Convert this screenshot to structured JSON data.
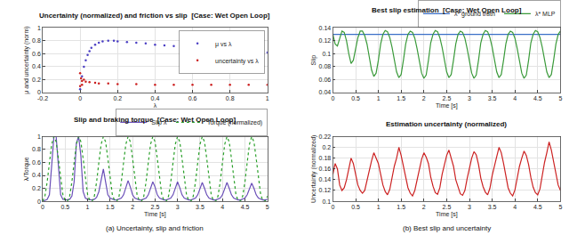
{
  "chart_data": [
    {
      "type": "scatter",
      "title": "Uncertainty (normalized) and friction vs slip  [Case: Wet Open Loop]",
      "x_label": "λ",
      "y_label": "μ and uncertainty (norm)",
      "xlim": [
        -0.2,
        1
      ],
      "xticks": [
        -0.2,
        0,
        0.2,
        0.4,
        0.6,
        0.8,
        1
      ],
      "ylim": [
        0,
        1
      ],
      "yticks": [
        0,
        0.2,
        0.4,
        0.6,
        0.8,
        1
      ],
      "grid": true,
      "legend": "upper right",
      "series": [
        {
          "name": "μ vs λ",
          "color": "#4b3fc4",
          "marker": "dot",
          "x": [
            0,
            0.01,
            0.02,
            0.03,
            0.04,
            0.05,
            0.06,
            0.08,
            0.1,
            0.12,
            0.15,
            0.18,
            0.2,
            0.25,
            0.3,
            0.35,
            0.4,
            0.45,
            0.5,
            0.55,
            0.6,
            0.65,
            0.7,
            0.75,
            0.8,
            0.85,
            0.9,
            0.95,
            1
          ],
          "values": [
            0.05,
            0.25,
            0.4,
            0.5,
            0.58,
            0.64,
            0.69,
            0.74,
            0.77,
            0.79,
            0.8,
            0.8,
            0.79,
            0.78,
            0.77,
            0.76,
            0.74,
            0.73,
            0.72,
            0.71,
            0.7,
            0.69,
            0.68,
            0.67,
            0.66,
            0.65,
            0.64,
            0.63,
            0.62
          ]
        },
        {
          "name": "uncertainty vs λ",
          "color": "#cc2020",
          "marker": "dot",
          "x": [
            0,
            0,
            0.005,
            0.01,
            0.01,
            0.02,
            0.03,
            0.05,
            0.08,
            0.1,
            0.15,
            0.2,
            0.3,
            0.4,
            0.5,
            0.6,
            0.7,
            0.8,
            0.9,
            1
          ],
          "values": [
            0.3,
            0.1,
            0.22,
            0.18,
            0.12,
            0.2,
            0.17,
            0.16,
            0.15,
            0.14,
            0.14,
            0.13,
            0.13,
            0.12,
            0.12,
            0.12,
            0.12,
            0.12,
            0.12,
            0.12
          ]
        }
      ]
    },
    {
      "type": "line",
      "title": "Slip and braking torque  [Case: Wet Open Loop]",
      "x_label": "Time [s]",
      "y_label": "λ/Torque",
      "xlim": [
        0,
        5
      ],
      "xticks": [
        0,
        0.5,
        1,
        1.5,
        2,
        2.5,
        3,
        3.5,
        4,
        4.5,
        5
      ],
      "ylim": [
        0,
        1
      ],
      "yticks": [
        0,
        0.2,
        0.4,
        0.6,
        0.8,
        1
      ],
      "grid": true,
      "legend": "above",
      "x": [
        0,
        0.05,
        0.1,
        0.15,
        0.2,
        0.25,
        0.3,
        0.35,
        0.4,
        0.45,
        0.5,
        0.55,
        0.6,
        0.65,
        0.7,
        0.75,
        0.8,
        0.85,
        0.9,
        0.95,
        1,
        1.05,
        1.1,
        1.15,
        1.2,
        1.25,
        1.3,
        1.35,
        1.4,
        1.45,
        1.5,
        1.55,
        1.6,
        1.65,
        1.7,
        1.75,
        1.8,
        1.85,
        1.9,
        1.95,
        2,
        2.05,
        2.1,
        2.15,
        2.2,
        2.25,
        2.3,
        2.35,
        2.4,
        2.45,
        2.5,
        2.55,
        2.6,
        2.65,
        2.7,
        2.75,
        2.8,
        2.85,
        2.9,
        2.95,
        3,
        3.05,
        3.1,
        3.15,
        3.2,
        3.25,
        3.3,
        3.35,
        3.4,
        3.45,
        3.5,
        3.55,
        3.6,
        3.65,
        3.7,
        3.75,
        3.8,
        3.85,
        3.9,
        3.95,
        4,
        4.05,
        4.1,
        4.15,
        4.2,
        4.25,
        4.3,
        4.35,
        4.4,
        4.45,
        4.5,
        4.55,
        4.6,
        4.65,
        4.7,
        4.75,
        4.8,
        4.85,
        4.9,
        4.95,
        5
      ],
      "series": [
        {
          "name": "Slip λ",
          "color": "#6a4fb8",
          "line_style": "solid",
          "values": [
            0,
            0.01,
            0.03,
            0.1,
            0.5,
            1,
            1,
            0.6,
            0.1,
            0.03,
            0.02,
            0.02,
            0.03,
            0.08,
            0.3,
            0.9,
            1,
            0.7,
            0.15,
            0.05,
            0.03,
            0.02,
            0.02,
            0.03,
            0.06,
            0.15,
            0.35,
            0.5,
            0.3,
            0.1,
            0.05,
            0.03,
            0.02,
            0.02,
            0.03,
            0.05,
            0.1,
            0.22,
            0.32,
            0.22,
            0.1,
            0.05,
            0.03,
            0.02,
            0.02,
            0.03,
            0.05,
            0.1,
            0.2,
            0.3,
            0.22,
            0.1,
            0.05,
            0.03,
            0.02,
            0.02,
            0.03,
            0.05,
            0.1,
            0.2,
            0.3,
            0.21,
            0.1,
            0.05,
            0.03,
            0.02,
            0.02,
            0.03,
            0.05,
            0.1,
            0.2,
            0.29,
            0.2,
            0.1,
            0.05,
            0.03,
            0.02,
            0.02,
            0.03,
            0.05,
            0.1,
            0.2,
            0.29,
            0.2,
            0.1,
            0.05,
            0.03,
            0.02,
            0.02,
            0.03,
            0.05,
            0.1,
            0.2,
            0.28,
            0.2,
            0.1,
            0.05,
            0.03,
            0.02,
            0.02,
            0.03
          ]
        },
        {
          "name": "Torque (normalized)",
          "color": "#2aa02a",
          "line_style": "dotted",
          "values": [
            0,
            0.08,
            0.3,
            0.6,
            0.88,
            1,
            0.92,
            0.66,
            0.36,
            0.1,
            0.01,
            0,
            0.08,
            0.3,
            0.6,
            0.88,
            1,
            0.92,
            0.66,
            0.36,
            0.1,
            0.01,
            0,
            0.08,
            0.3,
            0.6,
            0.88,
            1,
            0.92,
            0.66,
            0.36,
            0.1,
            0.01,
            0,
            0.08,
            0.3,
            0.6,
            0.88,
            1,
            0.92,
            0.66,
            0.36,
            0.1,
            0.01,
            0,
            0.08,
            0.3,
            0.6,
            0.88,
            1,
            0.92,
            0.66,
            0.36,
            0.1,
            0.01,
            0,
            0.08,
            0.3,
            0.6,
            0.88,
            1,
            0.92,
            0.66,
            0.36,
            0.1,
            0.01,
            0,
            0.08,
            0.3,
            0.6,
            0.88,
            1,
            0.92,
            0.66,
            0.36,
            0.1,
            0.01,
            0,
            0.08,
            0.3,
            0.6,
            0.88,
            1,
            0.92,
            0.66,
            0.36,
            0.1,
            0.01,
            0,
            0.08,
            0.3,
            0.6,
            0.88,
            1,
            0.92,
            0.66,
            0.36,
            0.1,
            0.01,
            0,
            0.08
          ]
        }
      ]
    },
    {
      "type": "line",
      "title": "Best slip estimation  [Case: Wet Open Loop]",
      "x_label": "Time [s]",
      "y_label": "Slip",
      "xlim": [
        0,
        5
      ],
      "xticks": [
        0,
        0.5,
        1,
        1.5,
        2,
        2.5,
        3,
        3.5,
        4,
        4.5,
        5
      ],
      "ylim": [
        0.04,
        0.14
      ],
      "yticks": [
        0.04,
        0.06,
        0.08,
        0.1,
        0.12,
        0.14
      ],
      "grid": true,
      "legend": "above",
      "x": [
        0,
        0.05,
        0.1,
        0.15,
        0.2,
        0.25,
        0.3,
        0.35,
        0.4,
        0.45,
        0.5,
        0.55,
        0.6,
        0.65,
        0.7,
        0.75,
        0.8,
        0.85,
        0.9,
        0.95,
        1,
        1.05,
        1.1,
        1.15,
        1.2,
        1.25,
        1.3,
        1.35,
        1.4,
        1.45,
        1.5,
        1.55,
        1.6,
        1.65,
        1.7,
        1.75,
        1.8,
        1.85,
        1.9,
        1.95,
        2,
        2.05,
        2.1,
        2.15,
        2.2,
        2.25,
        2.3,
        2.35,
        2.4,
        2.45,
        2.5,
        2.55,
        2.6,
        2.65,
        2.7,
        2.75,
        2.8,
        2.85,
        2.9,
        2.95,
        3,
        3.05,
        3.1,
        3.15,
        3.2,
        3.25,
        3.3,
        3.35,
        3.4,
        3.45,
        3.5,
        3.55,
        3.6,
        3.65,
        3.7,
        3.75,
        3.8,
        3.85,
        3.9,
        3.95,
        4,
        4.05,
        4.1,
        4.15,
        4.2,
        4.25,
        4.3,
        4.35,
        4.4,
        4.45,
        4.5,
        4.55,
        4.6,
        4.65,
        4.7,
        4.75,
        4.8,
        4.85,
        4.9,
        4.95,
        5
      ],
      "series": [
        {
          "name": "λ* ground truth",
          "color": "#3a6fc8",
          "line_style": "solid",
          "x": [
            0,
            5
          ],
          "values": [
            0.13,
            0.13
          ]
        },
        {
          "name": "λ* MLP",
          "color": "#3a9a3a",
          "line_style": "solid",
          "values": [
            0.13,
            0.115,
            0.112,
            0.125,
            0.135,
            0.133,
            0.12,
            0.1,
            0.085,
            0.09,
            0.11,
            0.125,
            0.135,
            0.135,
            0.128,
            0.115,
            0.095,
            0.075,
            0.065,
            0.07,
            0.09,
            0.115,
            0.13,
            0.136,
            0.134,
            0.125,
            0.11,
            0.09,
            0.072,
            0.063,
            0.068,
            0.09,
            0.115,
            0.13,
            0.135,
            0.133,
            0.124,
            0.108,
            0.088,
            0.07,
            0.062,
            0.067,
            0.09,
            0.117,
            0.13,
            0.136,
            0.134,
            0.125,
            0.11,
            0.09,
            0.072,
            0.063,
            0.068,
            0.09,
            0.115,
            0.13,
            0.135,
            0.133,
            0.124,
            0.108,
            0.088,
            0.07,
            0.062,
            0.067,
            0.09,
            0.117,
            0.13,
            0.136,
            0.134,
            0.125,
            0.11,
            0.09,
            0.072,
            0.063,
            0.068,
            0.09,
            0.115,
            0.13,
            0.135,
            0.133,
            0.124,
            0.108,
            0.088,
            0.07,
            0.062,
            0.067,
            0.09,
            0.117,
            0.13,
            0.136,
            0.134,
            0.125,
            0.11,
            0.09,
            0.072,
            0.063,
            0.068,
            0.09,
            0.115,
            0.13,
            0.135
          ]
        }
      ]
    },
    {
      "type": "line",
      "title": "Estimation uncertainty (normalized)",
      "x_label": "Time [s]",
      "y_label": "Uncertainty (normalized)",
      "xlim": [
        0,
        5
      ],
      "xticks": [
        0,
        0.5,
        1,
        1.5,
        2,
        2.5,
        3,
        3.5,
        4,
        4.5,
        5
      ],
      "ylim": [
        0.1,
        0.22
      ],
      "yticks": [
        0.1,
        0.12,
        0.14,
        0.16,
        0.18,
        0.2,
        0.22
      ],
      "grid": true,
      "x": [
        0,
        0.05,
        0.1,
        0.15,
        0.2,
        0.25,
        0.3,
        0.35,
        0.4,
        0.45,
        0.5,
        0.55,
        0.6,
        0.65,
        0.7,
        0.75,
        0.8,
        0.85,
        0.9,
        0.95,
        1,
        1.05,
        1.1,
        1.15,
        1.2,
        1.25,
        1.3,
        1.35,
        1.4,
        1.45,
        1.5,
        1.55,
        1.6,
        1.65,
        1.7,
        1.75,
        1.8,
        1.85,
        1.9,
        1.95,
        2,
        2.05,
        2.1,
        2.15,
        2.2,
        2.25,
        2.3,
        2.35,
        2.4,
        2.45,
        2.5,
        2.55,
        2.6,
        2.65,
        2.7,
        2.75,
        2.8,
        2.85,
        2.9,
        2.95,
        3,
        3.05,
        3.1,
        3.15,
        3.2,
        3.25,
        3.3,
        3.35,
        3.4,
        3.45,
        3.5,
        3.55,
        3.6,
        3.65,
        3.7,
        3.75,
        3.8,
        3.85,
        3.9,
        3.95,
        4,
        4.05,
        4.1,
        4.15,
        4.2,
        4.25,
        4.3,
        4.35,
        4.4,
        4.45,
        4.5,
        4.55,
        4.6,
        4.65,
        4.7,
        4.75,
        4.8,
        4.85,
        4.9,
        4.95,
        5
      ],
      "series": [
        {
          "name": "Uncertainty",
          "color": "#cc2222",
          "line_style": "solid",
          "values": [
            0.15,
            0.17,
            0.16,
            0.13,
            0.12,
            0.125,
            0.14,
            0.16,
            0.18,
            0.17,
            0.15,
            0.13,
            0.12,
            0.115,
            0.12,
            0.14,
            0.16,
            0.175,
            0.19,
            0.18,
            0.17,
            0.15,
            0.13,
            0.118,
            0.112,
            0.122,
            0.145,
            0.165,
            0.18,
            0.2,
            0.185,
            0.165,
            0.14,
            0.125,
            0.115,
            0.11,
            0.12,
            0.14,
            0.16,
            0.178,
            0.19,
            0.182,
            0.17,
            0.145,
            0.128,
            0.116,
            0.113,
            0.125,
            0.15,
            0.17,
            0.185,
            0.195,
            0.18,
            0.165,
            0.14,
            0.126,
            0.114,
            0.111,
            0.12,
            0.142,
            0.163,
            0.18,
            0.192,
            0.186,
            0.168,
            0.143,
            0.127,
            0.117,
            0.112,
            0.124,
            0.148,
            0.168,
            0.183,
            0.2,
            0.19,
            0.17,
            0.145,
            0.125,
            0.115,
            0.11,
            0.121,
            0.145,
            0.165,
            0.18,
            0.193,
            0.185,
            0.168,
            0.144,
            0.126,
            0.116,
            0.112,
            0.123,
            0.15,
            0.172,
            0.19,
            0.21,
            0.195,
            0.172,
            0.148,
            0.13,
            0.12
          ]
        }
      ]
    }
  ],
  "captions": [
    "(a) Uncertainty, slip and friction",
    "(b) Best slip and uncertainty"
  ]
}
